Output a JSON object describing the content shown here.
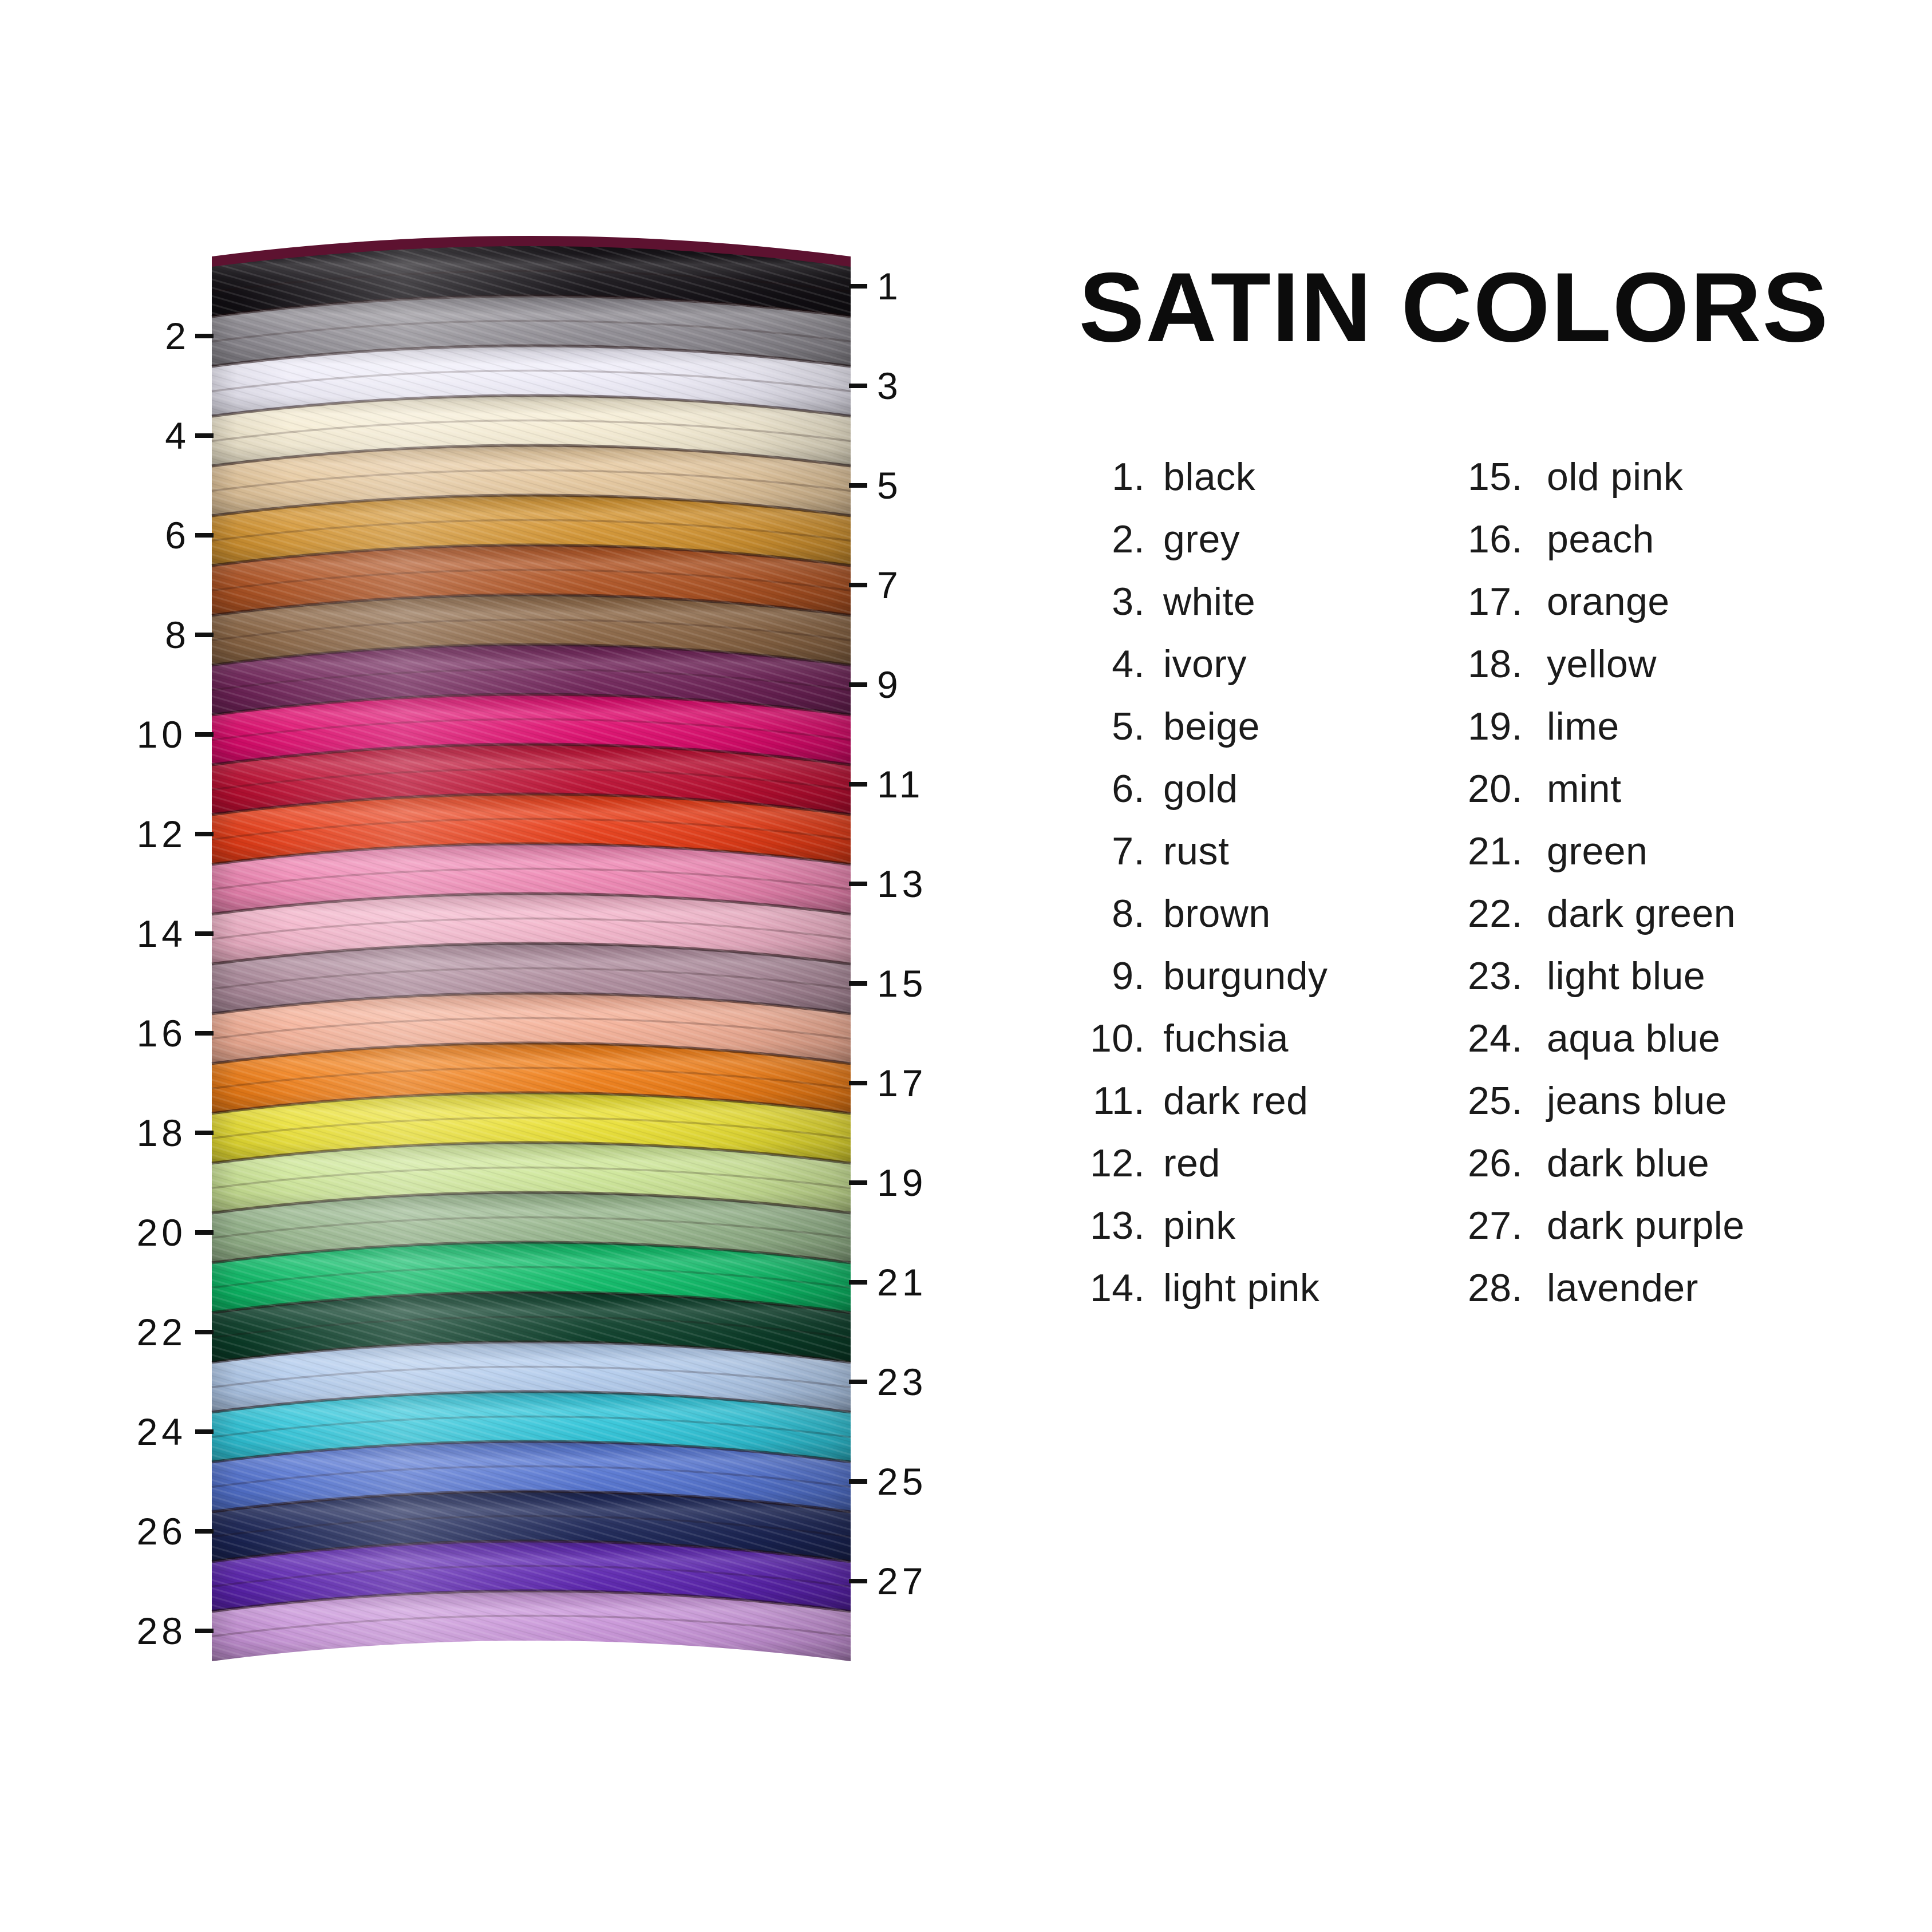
{
  "title": "SATIN COLORS",
  "stack": {
    "description_label": "numbered satin cord swatch stack",
    "top_sliver_hex": "#5d1230",
    "boundary_line_hex": "rgba(35,16,18,0.55)",
    "mid_line_hex": "rgba(30,14,14,0.22)",
    "tick_hex": "#111111",
    "label_hex": "#111111",
    "colors": [
      {
        "n": 1,
        "name": "black",
        "hex": "#131015"
      },
      {
        "n": 2,
        "name": "grey",
        "hex": "#8e8b92"
      },
      {
        "n": 3,
        "name": "white",
        "hex": "#eeecf8"
      },
      {
        "n": 4,
        "name": "ivory",
        "hex": "#f5ecd3"
      },
      {
        "n": 5,
        "name": "beige",
        "hex": "#e5c79d"
      },
      {
        "n": 6,
        "name": "gold",
        "hex": "#d29330"
      },
      {
        "n": 7,
        "name": "rust",
        "hex": "#ae5222"
      },
      {
        "n": 8,
        "name": "brown",
        "hex": "#8a6544"
      },
      {
        "n": 9,
        "name": "burgundy",
        "hex": "#6e2257"
      },
      {
        "n": 10,
        "name": "fuchsia",
        "hex": "#dd0a6c"
      },
      {
        "n": 11,
        "name": "dark red",
        "hex": "#bb0d31"
      },
      {
        "n": 12,
        "name": "red",
        "hex": "#e73c17"
      },
      {
        "n": 13,
        "name": "pink",
        "hex": "#ee85b2"
      },
      {
        "n": 14,
        "name": "light pink",
        "hex": "#f2b3c9"
      },
      {
        "n": 15,
        "name": "old pink",
        "hex": "#ae8c9d"
      },
      {
        "n": 16,
        "name": "peach",
        "hex": "#f4b097"
      },
      {
        "n": 17,
        "name": "orange",
        "hex": "#ef7d16"
      },
      {
        "n": 18,
        "name": "yellow",
        "hex": "#e9df33"
      },
      {
        "n": 19,
        "name": "lime",
        "hex": "#cde697"
      },
      {
        "n": 20,
        "name": "mint",
        "hex": "#96b58c"
      },
      {
        "n": 21,
        "name": "green",
        "hex": "#0cbb67"
      },
      {
        "n": 22,
        "name": "dark green",
        "hex": "#0a3d28"
      },
      {
        "n": 23,
        "name": "light blue",
        "hex": "#b2cbec"
      },
      {
        "n": 24,
        "name": "aqua blue",
        "hex": "#2fc4d8"
      },
      {
        "n": 25,
        "name": "jeans blue",
        "hex": "#5373d0"
      },
      {
        "n": 26,
        "name": "dark blue",
        "hex": "#1a2455"
      },
      {
        "n": 27,
        "name": "dark purple",
        "hex": "#5a22ae"
      },
      {
        "n": 28,
        "name": "lavender",
        "hex": "#c894d8"
      }
    ]
  },
  "chart_data": {
    "type": "table",
    "title": "SATIN COLORS",
    "legend_position": "right",
    "categories": [
      1,
      2,
      3,
      4,
      5,
      6,
      7,
      8,
      9,
      10,
      11,
      12,
      13,
      14,
      15,
      16,
      17,
      18,
      19,
      20,
      21,
      22,
      23,
      24,
      25,
      26,
      27,
      28
    ],
    "values": [
      "black",
      "grey",
      "white",
      "ivory",
      "beige",
      "gold",
      "rust",
      "brown",
      "burgundy",
      "fuchsia",
      "dark red",
      "red",
      "pink",
      "light pink",
      "old pink",
      "peach",
      "orange",
      "yellow",
      "lime",
      "mint",
      "green",
      "dark green",
      "light blue",
      "aqua blue",
      "jeans blue",
      "dark blue",
      "dark purple",
      "lavender"
    ]
  }
}
